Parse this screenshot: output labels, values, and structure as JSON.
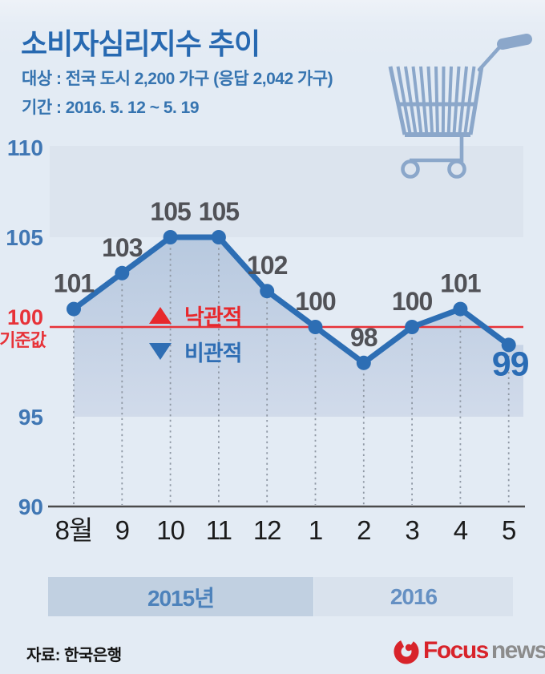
{
  "header": {
    "title": "소비자심리지수 추이",
    "subtitle_target": "대상 : 전국 도시 2,200 가구 (응답 2,042 가구)",
    "subtitle_period": "기간 : 2016. 5. 12 ~ 5. 19"
  },
  "chart_data": {
    "type": "line",
    "title": "소비자심리지수 추이",
    "categories": [
      "8월",
      "9",
      "10",
      "11",
      "12",
      "1",
      "2",
      "3",
      "4",
      "5"
    ],
    "values": [
      101,
      103,
      105,
      105,
      102,
      100,
      98,
      100,
      101,
      99
    ],
    "ylim": [
      90,
      110
    ],
    "yticks": [
      110,
      105,
      95,
      90
    ],
    "grid": "dotted-vertical-guides",
    "baseline": {
      "value": 100,
      "tick_label": "100",
      "name_label": "기준값",
      "color": "#e73238"
    },
    "highlight_last_point": true,
    "line_color": "#2d6eb4",
    "marker_color": "#2d6eb4",
    "value_label_color": "#515257",
    "last_value_label_color": "#2a6cb5",
    "ytick_color": "#4077b4",
    "xtick_color": "#1b1b1b",
    "area_fill_top": "#b5c7de",
    "area_fill_bottom": "#d0daea",
    "legend": [
      {
        "symbol": "up-triangle",
        "label": "낙관적",
        "color": "#e7282c"
      },
      {
        "symbol": "down-triangle",
        "label": "비관적",
        "color": "#2f6eb4"
      }
    ],
    "year_bands": [
      {
        "label": "2015년",
        "months": [
          "8월",
          "9",
          "10",
          "11",
          "12"
        ]
      },
      {
        "label": "2016",
        "months": [
          "1",
          "2",
          "3",
          "4",
          "5"
        ]
      }
    ]
  },
  "footer": {
    "source": "자료: 한국은행",
    "logo": {
      "word1": "Focus",
      "word2": "news",
      "brand_color": "#d8232a"
    }
  }
}
